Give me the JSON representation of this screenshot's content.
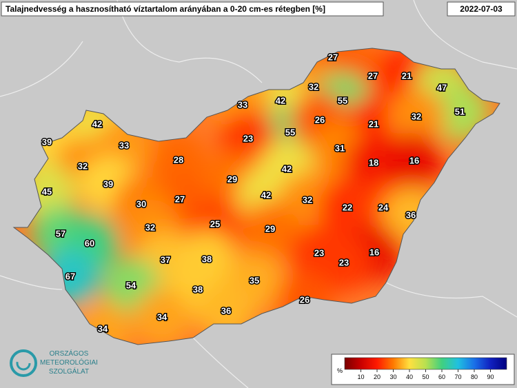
{
  "header": {
    "title": "Talajnedvesség a hasznosítható víztartalom arányában a 0-20 cm-es rétegben [%]",
    "date": "2022-07-03"
  },
  "stations": [
    27,
    27,
    21,
    47,
    32,
    42,
    55,
    33,
    51,
    55,
    26,
    21,
    32,
    42,
    39,
    33,
    23,
    31,
    18,
    16,
    28,
    32,
    42,
    29,
    39,
    45,
    42,
    32,
    27,
    30,
    22,
    24,
    36,
    32,
    25,
    29,
    57,
    60,
    23,
    16,
    37,
    38,
    23,
    67,
    54,
    35,
    38,
    26,
    34,
    36,
    34
  ],
  "legend": {
    "unit": "%",
    "range": [
      0,
      100
    ],
    "ticks": [
      10,
      20,
      30,
      40,
      50,
      60,
      70,
      80,
      90
    ],
    "colors": [
      "#7a0000",
      "#c80000",
      "#ff1a00",
      "#ff7a00",
      "#ffe040",
      "#b8e050",
      "#40d080",
      "#20c0e0",
      "#1a70e8",
      "#1020c0",
      "#000080"
    ]
  },
  "logo": {
    "lines": [
      "ORSZÁGOS",
      "METEOROLÓGIAI",
      "SZOLGÁLAT"
    ]
  }
}
